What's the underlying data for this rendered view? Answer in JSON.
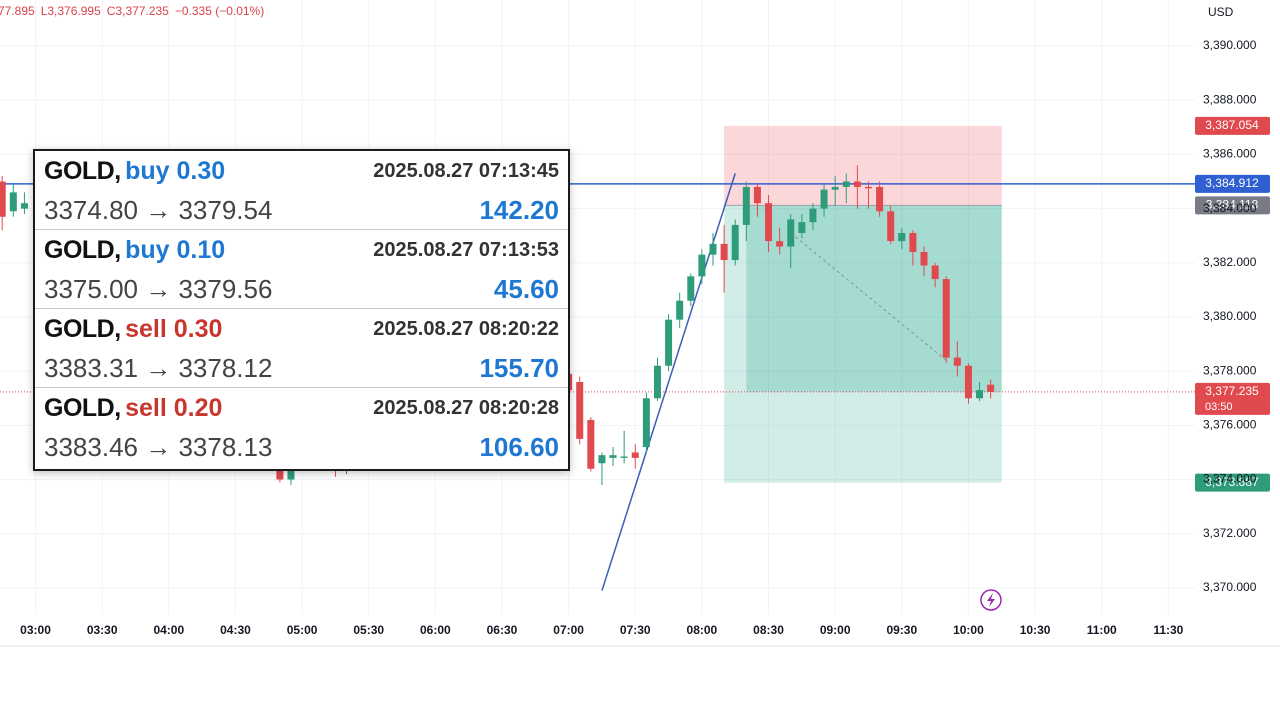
{
  "header": {
    "ohlc": [
      "77.895",
      "L3,376.995",
      "C3,377.235",
      "−0.335 (−0.01%)"
    ],
    "currency": "USD"
  },
  "chart_data": {
    "type": "candlestick",
    "x": [
      "02:45",
      "02:50",
      "02:55",
      "04:50",
      "04:55",
      "05:15",
      "05:20",
      "07:00",
      "07:05",
      "07:10",
      "07:15",
      "07:20",
      "07:25",
      "07:30",
      "07:35",
      "07:40",
      "07:45",
      "07:50",
      "07:55",
      "08:00",
      "08:05",
      "08:10",
      "08:15",
      "08:20",
      "08:25",
      "08:30",
      "08:35",
      "08:40",
      "08:45",
      "08:50",
      "08:55",
      "09:00",
      "09:05",
      "09:10",
      "09:15",
      "09:20",
      "09:25",
      "09:30",
      "09:35",
      "09:40",
      "09:45",
      "09:50",
      "09:55",
      "10:00",
      "10:05",
      "10:10"
    ],
    "open": [
      3385.0,
      3383.9,
      3384.0,
      3375.5,
      3374.0,
      3374.6,
      3374.5,
      3377.9,
      3377.6,
      3376.2,
      3374.6,
      3374.8,
      3374.8,
      3375.0,
      3375.2,
      3377.0,
      3378.2,
      3379.9,
      3380.6,
      3381.5,
      3382.3,
      3382.7,
      3382.1,
      3383.4,
      3384.8,
      3384.2,
      3382.8,
      3382.6,
      3383.1,
      3383.5,
      3384.0,
      3384.7,
      3384.8,
      3385.0,
      3384.8,
      3384.8,
      3383.9,
      3382.8,
      3383.1,
      3382.4,
      3381.9,
      3381.4,
      3378.5,
      3378.2,
      3377.0,
      3377.5
    ],
    "high": [
      3385.2,
      3384.9,
      3384.6,
      3375.8,
      3375.3,
      3375.0,
      3374.9,
      3378.0,
      3377.8,
      3376.3,
      3375.0,
      3375.2,
      3375.8,
      3375.3,
      3377.2,
      3378.5,
      3380.1,
      3380.9,
      3381.6,
      3382.5,
      3383.1,
      3383.4,
      3383.6,
      3385.0,
      3384.9,
      3384.5,
      3383.3,
      3383.8,
      3383.8,
      3384.2,
      3384.9,
      3385.2,
      3385.3,
      3385.6,
      3385.0,
      3385.0,
      3384.1,
      3383.3,
      3383.2,
      3382.6,
      3382.0,
      3381.5,
      3379.1,
      3378.3,
      3377.6,
      3377.7
    ],
    "low": [
      3383.2,
      3383.7,
      3383.8,
      3373.9,
      3373.8,
      3374.1,
      3374.2,
      3377.0,
      3375.3,
      3374.3,
      3373.8,
      3374.5,
      3374.6,
      3374.4,
      3375.0,
      3376.9,
      3378.0,
      3379.6,
      3380.4,
      3381.2,
      3381.9,
      3380.9,
      3381.9,
      3382.8,
      3383.7,
      3382.4,
      3382.3,
      3381.8,
      3382.9,
      3383.2,
      3383.7,
      3384.1,
      3384.2,
      3384.0,
      3384.0,
      3383.7,
      3382.7,
      3382.5,
      3381.9,
      3381.5,
      3381.1,
      3378.3,
      3377.8,
      3376.8,
      3376.9,
      3377.0
    ],
    "close": [
      3383.7,
      3384.6,
      3384.2,
      3374.0,
      3374.9,
      3374.5,
      3374.6,
      3377.3,
      3375.5,
      3374.4,
      3374.9,
      3374.9,
      3374.85,
      3374.8,
      3377.0,
      3378.2,
      3379.9,
      3380.6,
      3381.5,
      3382.3,
      3382.7,
      3382.1,
      3383.4,
      3384.8,
      3384.2,
      3382.8,
      3382.6,
      3383.6,
      3383.5,
      3384.0,
      3384.7,
      3384.8,
      3385.0,
      3384.8,
      3384.75,
      3383.9,
      3382.8,
      3383.1,
      3382.4,
      3381.9,
      3381.4,
      3378.5,
      3378.2,
      3377.0,
      3377.3,
      3377.235
    ],
    "up_color": "#2e9c7a",
    "down_color": "#e04a4f",
    "xlim": [
      "02:44",
      "11:42"
    ],
    "xticks": [
      "03:00",
      "03:30",
      "04:00",
      "04:30",
      "05:00",
      "05:30",
      "06:00",
      "06:30",
      "07:00",
      "07:30",
      "08:00",
      "08:30",
      "09:00",
      "09:30",
      "10:00",
      "10:30",
      "11:00",
      "11:30"
    ],
    "ylim": [
      3369,
      3391.7
    ],
    "yticks": [
      {
        "value": 3370,
        "label": "3,370.000"
      },
      {
        "value": 3372,
        "label": "3,372.000"
      },
      {
        "value": 3374,
        "label": "3,374.000"
      },
      {
        "value": 3376,
        "label": "3,376.000"
      },
      {
        "value": 3378,
        "label": "3,378.000"
      },
      {
        "value": 3380,
        "label": "3,380.000"
      },
      {
        "value": 3382,
        "label": "3,382.000"
      },
      {
        "value": 3384,
        "label": "3,384.000"
      },
      {
        "value": 3386,
        "label": "3,386.000"
      },
      {
        "value": 3388,
        "label": "3,388.000"
      },
      {
        "value": 3390,
        "label": "3,390.000"
      }
    ],
    "grid": true,
    "position": {
      "start": "08:10",
      "end": "10:15",
      "stop": 3387.054,
      "entry": 3384.118,
      "target": 3373.887,
      "active_start": "08:20",
      "current": 3377.235
    },
    "horizontal_line": {
      "y": 3384.912,
      "color": "#2f5fd0"
    },
    "trend_line": {
      "x": [
        "07:15",
        "08:15"
      ],
      "y": [
        3369.9,
        3385.3
      ],
      "color": "#3b5fb8"
    },
    "projection_line": {
      "x": [
        "08:40",
        "09:50"
      ],
      "y": [
        3383.1,
        3378.4
      ],
      "color": "#8a8f99"
    },
    "price_labels": [
      {
        "value": 3387.054,
        "label": "3,387.054",
        "color": "#e04a4f"
      },
      {
        "value": 3384.912,
        "label": "3,384.912",
        "color": "#2f5fd0"
      },
      {
        "value": 3384.118,
        "label": "3,384.118",
        "color": "#787b86"
      },
      {
        "value": 3377.235,
        "label": "3,377.235",
        "color": "#e04a4f",
        "countdown": "03:50"
      },
      {
        "value": 3373.887,
        "label": "3,373.887",
        "color": "#2e9c7a"
      }
    ]
  },
  "trades": [
    {
      "symbol": "GOLD,",
      "side": "buy 0.30",
      "side_color": "#1e78d2",
      "time": "2025.08.27 07:13:45",
      "open": "3374.80",
      "close": "3379.54",
      "profit": "142.20",
      "profit_color": "#1e78d2"
    },
    {
      "symbol": "GOLD,",
      "side": "buy 0.10",
      "side_color": "#1e78d2",
      "time": "2025.08.27 07:13:53",
      "open": "3375.00",
      "close": "3379.56",
      "profit": "45.60",
      "profit_color": "#1e78d2"
    },
    {
      "symbol": "GOLD,",
      "side": "sell 0.30",
      "side_color": "#c8372d",
      "time": "2025.08.27 08:20:22",
      "open": "3383.31",
      "close": "3378.12",
      "profit": "155.70",
      "profit_color": "#1e78d2"
    },
    {
      "symbol": "GOLD,",
      "side": "sell 0.20",
      "side_color": "#c8372d",
      "time": "2025.08.27 08:20:28",
      "open": "3383.46",
      "close": "3378.13",
      "profit": "106.60",
      "profit_color": "#1e78d2"
    }
  ]
}
